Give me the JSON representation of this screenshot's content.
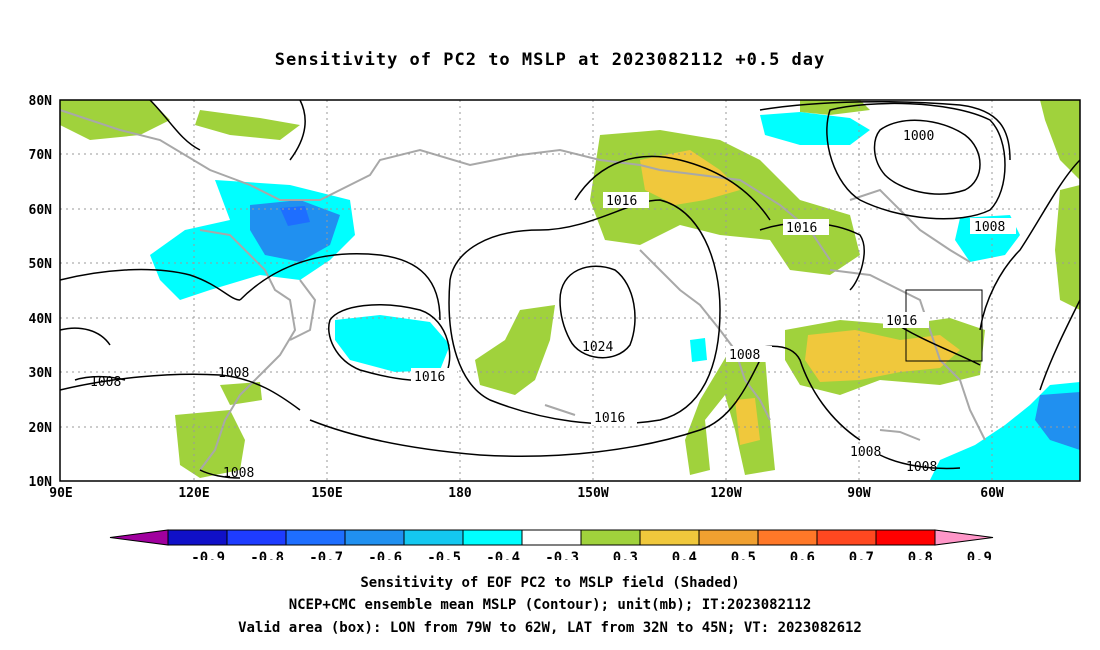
{
  "title": "Sensitivity of PC2 to MSLP at 2023082112 +0.5 day",
  "lat_labels": [
    "80N",
    "70N",
    "60N",
    "50N",
    "40N",
    "30N",
    "20N",
    "10N"
  ],
  "lon_labels": [
    "90E",
    "120E",
    "150E",
    "180",
    "150W",
    "120W",
    "90W",
    "60W"
  ],
  "contour_labels": [
    "1000",
    "1008",
    "1016",
    "1016",
    "1016",
    "1016",
    "1016",
    "1024",
    "1008",
    "1008",
    "1008",
    "1008",
    "1008",
    "1008"
  ],
  "colorbar": {
    "labels": [
      "-0.9",
      "-0.8",
      "-0.7",
      "-0.6",
      "-0.5",
      "-0.4",
      "-0.3",
      "0.3",
      "0.4",
      "0.5",
      "0.6",
      "0.7",
      "0.8",
      "0.9"
    ],
    "colors": [
      "#a0009e",
      "#1010c8",
      "#1e3cff",
      "#1e6eff",
      "#2090f0",
      "#14c8f0",
      "#00ffff",
      "#ffffff",
      "#a0d23c",
      "#f0c83c",
      "#f0a030",
      "#ff7828",
      "#ff4820",
      "#ff0000",
      "#ff96c8"
    ]
  },
  "footer": {
    "line1": "Sensitivity of EOF PC2 to MSLP field (Shaded)",
    "line2": "NCEP+CMC ensemble mean MSLP (Contour); unit(mb); IT:2023082112",
    "line3": "Valid area (box): LON from 79W to 62W, LAT from 32N to 45N; VT: 2023082612"
  }
}
